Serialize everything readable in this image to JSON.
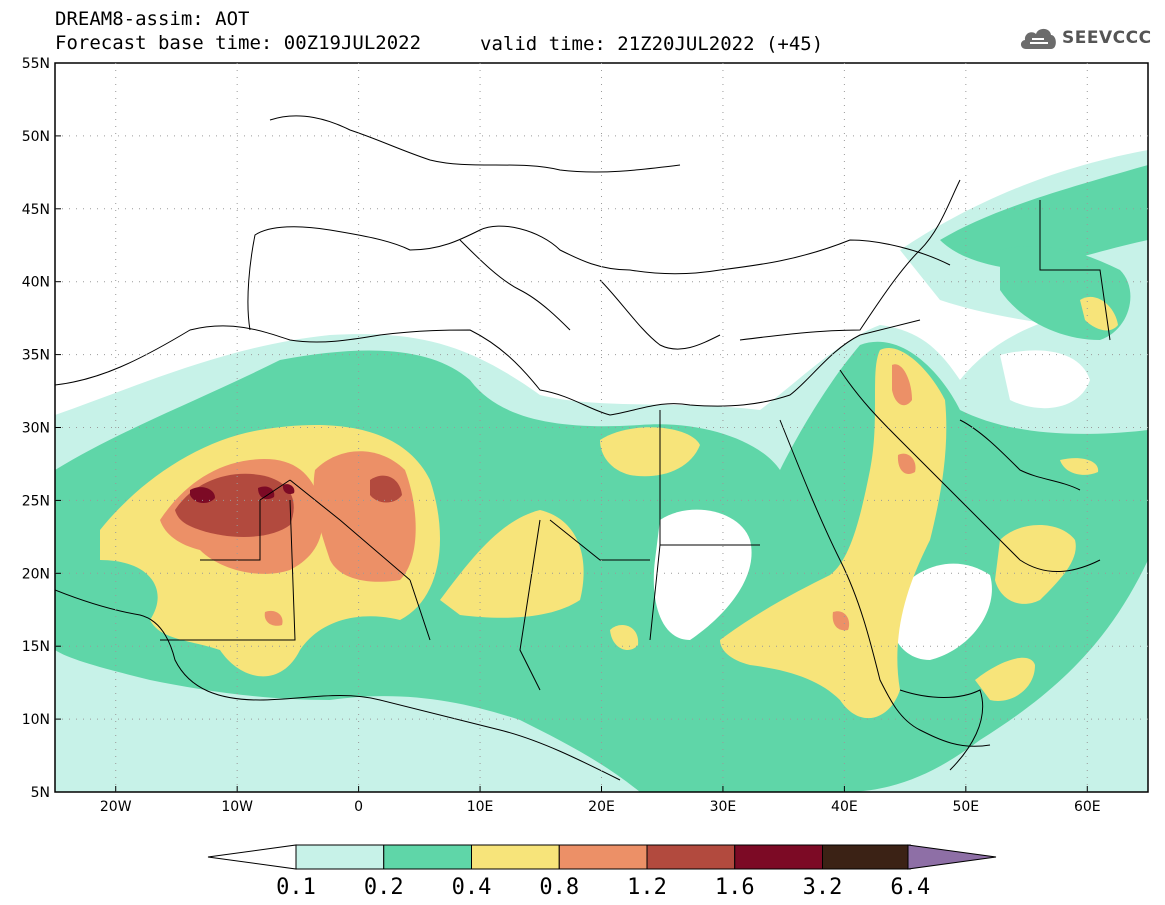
{
  "header": {
    "title": "DREAM8-assim: AOT",
    "base_time": "Forecast base time: 00Z19JUL2022",
    "valid_time": "valid time: 21Z20JUL2022 (+45)"
  },
  "logo": {
    "text": "SEEVCCC",
    "icon": "cloud-icon"
  },
  "map": {
    "variable": "AOT",
    "lat_ticks": [
      "55N",
      "50N",
      "45N",
      "40N",
      "35N",
      "30N",
      "25N",
      "20N",
      "15N",
      "10N",
      "5N"
    ],
    "lon_ticks": [
      "20W",
      "10W",
      "0",
      "10E",
      "20E",
      "30E",
      "40E",
      "50E",
      "60E"
    ],
    "lon_range": [
      -25,
      65
    ],
    "lat_range": [
      5,
      55
    ]
  },
  "colorbar": {
    "labels": [
      "0.1",
      "0.2",
      "0.4",
      "0.8",
      "1.2",
      "1.6",
      "3.2",
      "6.4"
    ],
    "colors": [
      "#ffffff",
      "#c7f2e8",
      "#5fd6a8",
      "#f7e47a",
      "#ec9067",
      "#b24a3e",
      "#7c0a25",
      "#3b2215",
      "#8e6fa6"
    ]
  }
}
